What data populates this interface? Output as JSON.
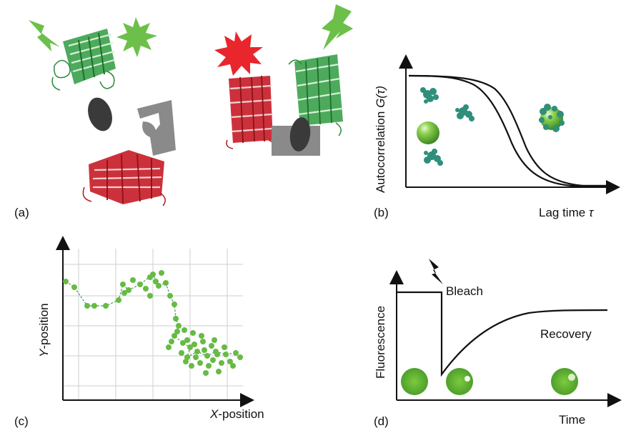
{
  "panels": {
    "a": {
      "label": "(a)"
    },
    "b": {
      "label": "(b)",
      "ylabel_prefix": "Autocorrelation ",
      "ylabel_func": "G(τ)",
      "xlabel_prefix": "Lag time ",
      "xlabel_sym": "τ"
    },
    "c": {
      "label": "(c)",
      "ylabel_var": "Y",
      "ylabel_suffix": "-position",
      "xlabel_var": "X",
      "xlabel_suffix": "-position"
    },
    "d": {
      "label": "(d)",
      "ylabel": "Fluorescence",
      "bleach": "Bleach",
      "recovery": "Recovery",
      "xlabel": "Time"
    }
  },
  "colors": {
    "gfp_green": "#3aa14a",
    "rfp_red": "#c8202a",
    "flash_green": "#6cc04a",
    "flash_red": "#e8262b",
    "particle_green": "#6fbf3c",
    "cluster_teal": "#2f8f7a"
  },
  "icons": [
    "lightning-bolt-icon",
    "starburst-icon",
    "barrel-protein-icon",
    "antibody-oval-icon",
    "binder-block-icon",
    "sphere-particle-icon",
    "protein-cluster-icon"
  ]
}
